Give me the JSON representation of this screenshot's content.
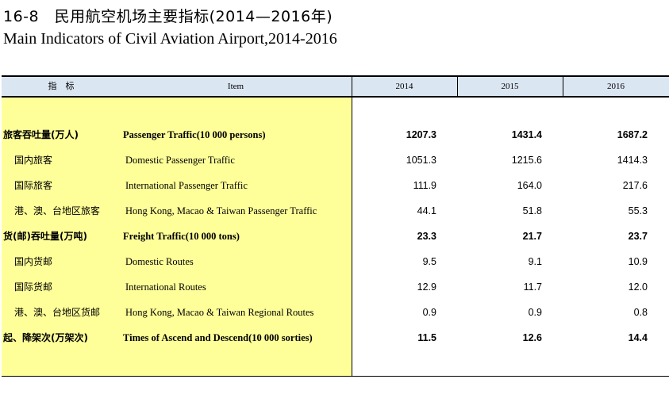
{
  "title": {
    "cn": "16-8　民用航空机场主要指标(2014—2016年)",
    "en": "Main Indicators of Civil Aviation Airport,2014-2016"
  },
  "header": {
    "indicator": "指　标",
    "item": "Item",
    "years": [
      "2014",
      "2015",
      "2016"
    ]
  },
  "rows": [
    {
      "cn": "旅客吞吐量(万人)",
      "en": "Passenger Traffic(10 000 persons)",
      "values": [
        "1207.3",
        "1431.4",
        "1687.2"
      ]
    },
    {
      "cn": "国内旅客",
      "en": "Domestic Passenger Traffic",
      "values": [
        "1051.3",
        "1215.6",
        "1414.3"
      ]
    },
    {
      "cn": "国际旅客",
      "en": "International Passenger Traffic",
      "values": [
        "111.9",
        "164.0",
        "217.6"
      ]
    },
    {
      "cn": "港、澳、台地区旅客",
      "en": "Hong Kong, Macao & Taiwan Passenger Traffic",
      "values": [
        "44.1",
        "51.8",
        "55.3"
      ]
    },
    {
      "cn": "货(邮)吞吐量(万吨)",
      "en": "Freight Traffic(10 000 tons)",
      "values": [
        "23.3",
        "21.7",
        "23.7"
      ]
    },
    {
      "cn": "国内货邮",
      "en": "Domestic Routes",
      "values": [
        "9.5",
        "9.1",
        "10.9"
      ]
    },
    {
      "cn": "国际货邮",
      "en": "International Routes",
      "values": [
        "12.9",
        "11.7",
        "12.0"
      ]
    },
    {
      "cn": "港、澳、台地区货邮",
      "en": "Hong Kong, Macao & Taiwan Regional Routes",
      "values": [
        "0.9",
        "0.9",
        "0.8"
      ]
    },
    {
      "cn": "起、降架次(万架次)",
      "en": "Times of Ascend and Descend(10 000 sorties)",
      "values": [
        "11.5",
        "12.6",
        "14.4"
      ]
    }
  ]
}
